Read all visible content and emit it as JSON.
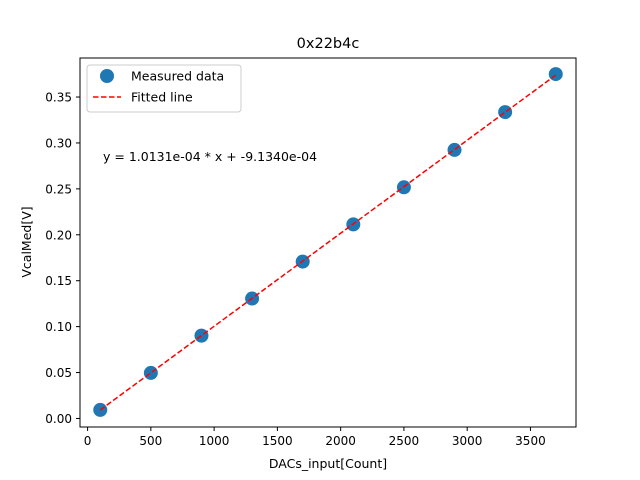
{
  "chart_data": {
    "type": "scatter",
    "title": "0x22b4c",
    "xlabel": "DACs_input[Count]",
    "ylabel": "VcalMed[V]",
    "xlim": [
      -60,
      3860
    ],
    "ylim": [
      -0.0093,
      0.3925
    ],
    "xticks": [
      0,
      500,
      1000,
      1500,
      2000,
      2500,
      3000,
      3500
    ],
    "yticks": [
      0.0,
      0.05,
      0.1,
      0.15,
      0.2,
      0.25,
      0.3,
      0.35
    ],
    "grid": false,
    "legend_position": "top-left",
    "annotation": "y = 1.0131e-04 * x + -9.1340e-04",
    "series": [
      {
        "name": "Measured data",
        "kind": "scatter",
        "color": "#1f77b4",
        "x": [
          100,
          500,
          900,
          1300,
          1700,
          2100,
          2500,
          2900,
          3300,
          3700
        ],
        "y": [
          0.0093,
          0.0496,
          0.0902,
          0.1306,
          0.1708,
          0.2113,
          0.2517,
          0.2924,
          0.3336,
          0.375
        ]
      },
      {
        "name": "Fitted line",
        "kind": "line",
        "style": "dashed",
        "color": "#ff0000",
        "slope": 0.00010131,
        "intercept": -0.0009134,
        "x": [
          100,
          3700
        ]
      }
    ]
  }
}
